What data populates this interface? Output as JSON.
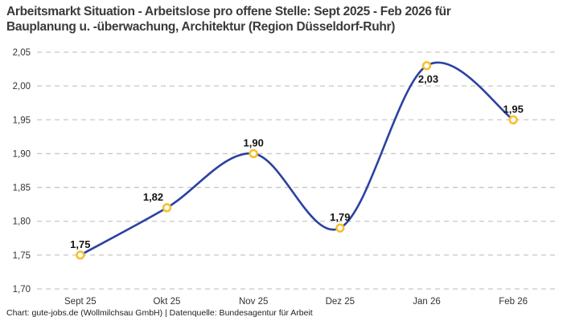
{
  "title": {
    "line1": "Arbeitsmarkt Situation - Arbeitslose pro offene Stelle: Sept 2025 - Feb 2026 für",
    "line2": "Bauplanung u. -überwachung, Architektur (Region Düsseldorf-Ruhr)"
  },
  "footer": "Chart: gute-jobs.de (Wollmilchsau GmbH) | Datenquelle: Bundesagentur für Arbeit",
  "colors": {
    "line": "#2a42a0",
    "marker_ring": "#f8c02e",
    "marker_fill": "#ffffff",
    "grid": "#c7c7c7",
    "axis_text": "#333333",
    "title_text": "#3a3a3a",
    "footer_text": "#1f1f1f",
    "point_label_text": "#141414",
    "background": "#ffffff"
  },
  "chart_data": {
    "type": "line",
    "title": "Arbeitsmarkt Situation - Arbeitslose pro offene Stelle: Sept 2025 - Feb 2026 für Bauplanung u. -überwachung, Architektur (Region Düsseldorf-Ruhr)",
    "categories": [
      "Sept 25",
      "Okt 25",
      "Nov 25",
      "Dez 25",
      "Jan 26",
      "Feb 26"
    ],
    "values": [
      1.75,
      1.82,
      1.9,
      1.79,
      2.03,
      1.95
    ],
    "value_labels": [
      "1,75",
      "1,82",
      "1,90",
      "1,79",
      "2,03",
      "1,95"
    ],
    "label_positions": [
      "above",
      "above-left",
      "above",
      "above",
      "below",
      "above"
    ],
    "y_ticks": {
      "values": [
        1.7,
        1.75,
        1.8,
        1.85,
        1.9,
        1.95,
        2.0,
        2.05
      ],
      "labels": [
        "1,70",
        "1,75",
        "1,80",
        "1,85",
        "1,90",
        "1,95",
        "2,00",
        "2,05"
      ]
    },
    "ylim": [
      1.7,
      2.05
    ],
    "xlabel": "",
    "ylabel": "",
    "grid": "horizontal-dashed",
    "legend": "none",
    "line_style": "smooth-spline",
    "marker_style": "open-circle"
  }
}
